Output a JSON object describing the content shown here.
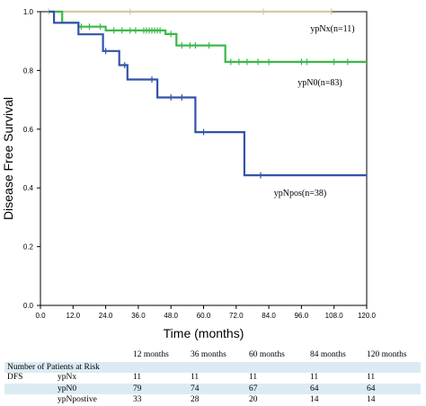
{
  "chart_data": {
    "type": "line",
    "subtype": "kaplan-meier survival curve",
    "xlabel": "Time (months)",
    "ylabel": "Disease Free Survival",
    "xlim": [
      0,
      120
    ],
    "ylim": [
      0,
      1.0
    ],
    "x_ticks": [
      "0.0",
      "12.0",
      "24.0",
      "36.0",
      "48.0",
      "60.0",
      "72.0",
      "84.0",
      "96.0",
      "108.0",
      "120.0"
    ],
    "y_ticks": [
      "0.0",
      "0.2",
      "0.4",
      "0.6",
      "0.8",
      "1.0"
    ],
    "grid": false,
    "series": [
      {
        "name": "ypNx(n=11)",
        "color": "#d6c9a0",
        "steps": [
          [
            3,
            1.0
          ],
          [
            107,
            1.0
          ]
        ],
        "censors": [
          3,
          33,
          82,
          107
        ]
      },
      {
        "name": "ypN0(n=83)",
        "color": "#3cb84a",
        "steps": [
          [
            3,
            1.0
          ],
          [
            8,
            1.0
          ],
          [
            8,
            0.962
          ],
          [
            14,
            0.962
          ],
          [
            14,
            0.949
          ],
          [
            24,
            0.949
          ],
          [
            24,
            0.936
          ],
          [
            46,
            0.936
          ],
          [
            46,
            0.924
          ],
          [
            50,
            0.924
          ],
          [
            50,
            0.885
          ],
          [
            68,
            0.885
          ],
          [
            68,
            0.829
          ],
          [
            120,
            0.829
          ]
        ],
        "censors": [
          15,
          18,
          22,
          27,
          30,
          33,
          35,
          38,
          39,
          40,
          41,
          42,
          43,
          44,
          48,
          52,
          55,
          57,
          62,
          70,
          73,
          76,
          80,
          84,
          96,
          98,
          108,
          113
        ]
      },
      {
        "name": "ypNpos(n=38)",
        "color": "#3352a8",
        "steps": [
          [
            3,
            1.0
          ],
          [
            5,
            1.0
          ],
          [
            5,
            0.962
          ],
          [
            14,
            0.962
          ],
          [
            14,
            0.923
          ],
          [
            23,
            0.923
          ],
          [
            23,
            0.866
          ],
          [
            29,
            0.866
          ],
          [
            29,
            0.818
          ],
          [
            32,
            0.818
          ],
          [
            32,
            0.769
          ],
          [
            43,
            0.769
          ],
          [
            43,
            0.708
          ],
          [
            57,
            0.708
          ],
          [
            57,
            0.59
          ],
          [
            75,
            0.59
          ],
          [
            75,
            0.443
          ],
          [
            120,
            0.443
          ]
        ],
        "censors": [
          24,
          31,
          41,
          48,
          52,
          60,
          81
        ]
      }
    ]
  },
  "risk_table": {
    "headers": [
      "12 months",
      "36 months",
      "60 months",
      "84 months",
      "120 months"
    ],
    "title": "Number of Patients at Risk",
    "group_label": "DFS",
    "rows": [
      {
        "label": "ypNx",
        "values": [
          "11",
          "11",
          "11",
          "11",
          "11"
        ]
      },
      {
        "label": "ypN0",
        "values": [
          "79",
          "74",
          "67",
          "64",
          "64"
        ]
      },
      {
        "label": "ypNpostive",
        "values": [
          "33",
          "28",
          "20",
          "14",
          "14"
        ]
      }
    ]
  }
}
